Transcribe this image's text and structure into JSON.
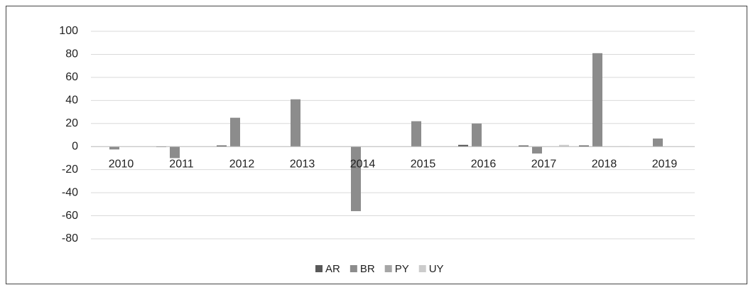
{
  "chart_data": {
    "type": "bar",
    "categories": [
      "2010",
      "2011",
      "2012",
      "2013",
      "2014",
      "2015",
      "2016",
      "2017",
      "2018",
      "2019"
    ],
    "series": [
      {
        "name": "AR",
        "color": "#595959",
        "values": [
          0,
          -0.5,
          1,
          0,
          0,
          0,
          1.5,
          1,
          1,
          0
        ]
      },
      {
        "name": "BR",
        "color": "#8c8c8c",
        "values": [
          -2.5,
          -10,
          25,
          41,
          -56,
          22,
          20,
          -6,
          81,
          7
        ]
      },
      {
        "name": "PY",
        "color": "#a6a6a6",
        "values": [
          0,
          0,
          0,
          0,
          0,
          0,
          0,
          0,
          0,
          0
        ]
      },
      {
        "name": "UY",
        "color": "#cccccc",
        "values": [
          0,
          0,
          0,
          0,
          0,
          0,
          0,
          1.5,
          0.3,
          0
        ]
      }
    ],
    "ylim": [
      -80,
      100
    ],
    "yticks": [
      -80,
      -60,
      -40,
      -20,
      0,
      20,
      40,
      60,
      80,
      100
    ],
    "grid": true,
    "legend": "bottom"
  }
}
